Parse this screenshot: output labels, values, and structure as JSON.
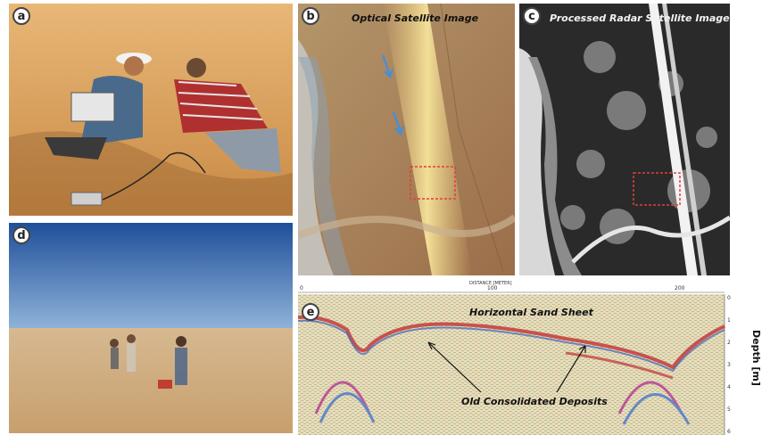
{
  "panels": {
    "a": {
      "label": "a"
    },
    "b": {
      "label": "b",
      "caption": "Optical Satellite Image"
    },
    "c": {
      "label": "c",
      "caption": "Processed Radar Satellite Image"
    },
    "d": {
      "label": "d"
    },
    "e": {
      "label": "e",
      "caption": "Horizontal Sand Sheet",
      "annotation": "Old Consolidated Deposits",
      "x_axis_title": "DISTANCE [METER]",
      "x_ticks": [
        "0",
        "100",
        "200"
      ],
      "y_axis_title": "Depth [m]",
      "y_ticks": [
        "0",
        "1",
        "2",
        "3",
        "4",
        "5",
        "6"
      ]
    }
  },
  "colors": {
    "highlight_box": "#e0403a",
    "arrow_blue": "#4a8fd0",
    "desert_sand": "#d9a35f",
    "sky_blue": "#3a6fb6"
  }
}
